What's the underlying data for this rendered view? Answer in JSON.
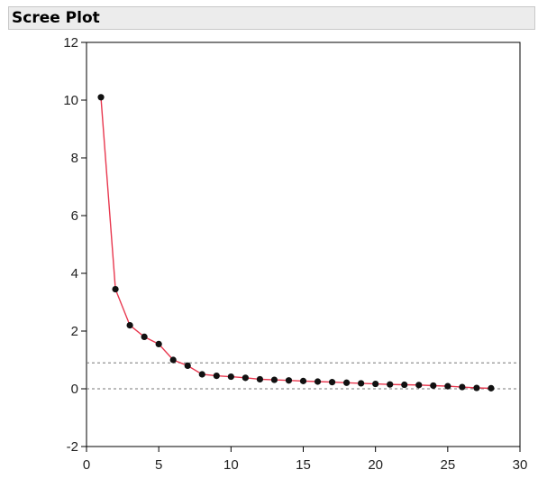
{
  "panel": {
    "title": "Scree Plot"
  },
  "chart_data": {
    "type": "line",
    "title": "",
    "xlabel": "",
    "ylabel": "",
    "xlim": [
      0,
      30
    ],
    "ylim": [
      -2,
      12
    ],
    "xticks": [
      0,
      5,
      10,
      15,
      20,
      25,
      30
    ],
    "yticks": [
      -2,
      0,
      2,
      4,
      6,
      8,
      10,
      12
    ],
    "reference_lines": [
      0,
      0.9
    ],
    "grid": false,
    "series": [
      {
        "x": [
          1,
          2,
          3,
          4,
          5,
          6,
          7,
          8,
          9,
          10,
          11,
          12,
          13,
          14,
          15,
          16,
          17,
          18,
          19,
          20,
          21,
          22,
          23,
          24,
          25,
          26,
          27,
          28
        ],
        "values": [
          10.1,
          3.45,
          2.2,
          1.8,
          1.55,
          1.0,
          0.8,
          0.5,
          0.45,
          0.42,
          0.38,
          0.33,
          0.31,
          0.29,
          0.27,
          0.25,
          0.23,
          0.21,
          0.19,
          0.17,
          0.15,
          0.14,
          0.13,
          0.11,
          0.09,
          0.06,
          0.03,
          0.02
        ],
        "line_color": "#e8384f",
        "marker_color": "#111111"
      }
    ]
  }
}
